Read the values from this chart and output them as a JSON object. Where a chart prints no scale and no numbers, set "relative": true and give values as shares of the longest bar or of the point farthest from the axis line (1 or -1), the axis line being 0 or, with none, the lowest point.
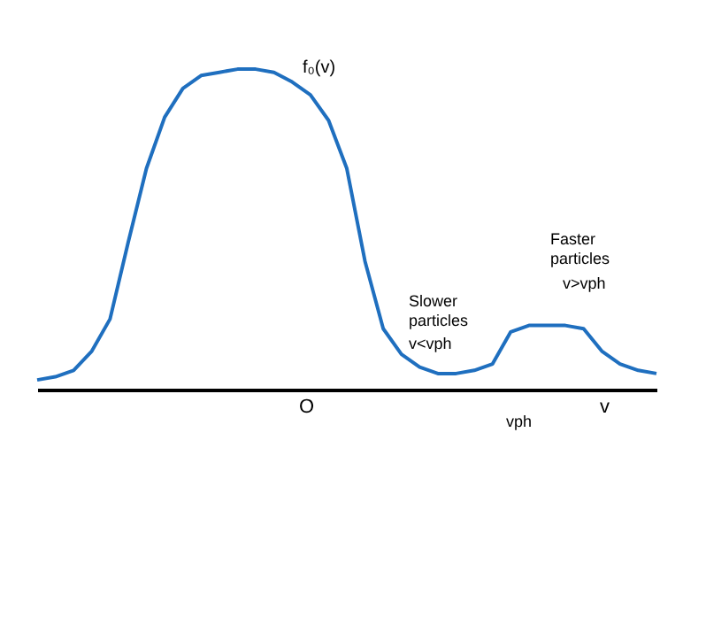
{
  "chart_data": {
    "type": "line",
    "relative": true,
    "ylabel": "f₀(v)",
    "xlabel": "v",
    "categories": [
      null,
      null,
      null,
      null,
      null,
      null,
      null,
      null,
      null,
      null,
      null,
      null,
      null,
      null,
      null,
      null,
      null,
      null,
      null,
      null,
      null,
      null,
      null,
      null,
      null,
      null,
      null,
      null,
      null,
      null,
      null,
      null,
      null,
      null,
      null
    ],
    "series": [
      {
        "color": "#1f6fbf",
        "values": [
          0.03,
          0.04,
          0.06,
          0.12,
          0.22,
          0.46,
          0.69,
          0.85,
          0.94,
          0.98,
          0.99,
          1.0,
          1.0,
          0.99,
          0.96,
          0.92,
          0.84,
          0.69,
          0.4,
          0.19,
          0.11,
          0.07,
          0.05,
          0.05,
          0.06,
          0.08,
          0.18,
          0.2,
          0.2,
          0.2,
          0.19,
          0.12,
          0.08,
          0.06,
          0.05
        ]
      }
    ],
    "annotations": [
      "O",
      "Slower particles",
      "v<vph",
      "Faster particles",
      "v>vph",
      "vph"
    ],
    "grid": false,
    "marker": "none",
    "line_style": "solid"
  }
}
